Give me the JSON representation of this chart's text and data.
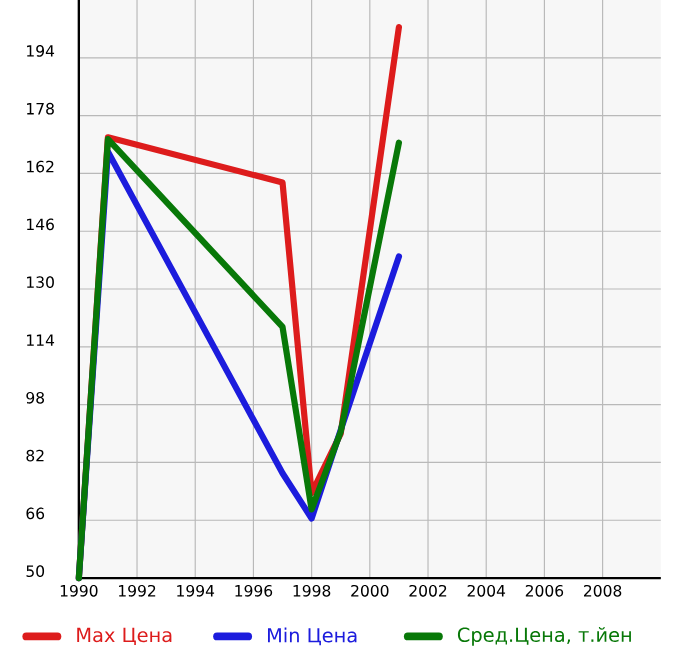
{
  "chart_data": {
    "type": "line",
    "x": [
      1990,
      1991,
      1997,
      1998,
      1999,
      2001
    ],
    "series": [
      {
        "name": "Max Цена",
        "color": "#dd1c1c",
        "values": [
          50,
          172,
          159.5,
          73.5,
          90,
          202.5
        ]
      },
      {
        "name": "Min Цена",
        "color": "#1c1cdd",
        "values": [
          50,
          168,
          79,
          66.5,
          91,
          139
        ]
      },
      {
        "name": "Сред.Цена, т.йен",
        "color": "#087808",
        "values": [
          50,
          171.5,
          119.5,
          69,
          90.5,
          170.5
        ]
      }
    ],
    "xlim": [
      1990,
      2010
    ],
    "ylim": [
      50,
      210
    ],
    "xticks": [
      1990,
      1992,
      1994,
      1996,
      1998,
      2000,
      2002,
      2004,
      2006,
      2008
    ],
    "yticks": [
      50,
      66,
      82,
      98,
      114,
      130,
      146,
      162,
      178,
      194
    ],
    "grid": true,
    "legend": "bottom",
    "marker": "none",
    "line_style": "solid"
  }
}
